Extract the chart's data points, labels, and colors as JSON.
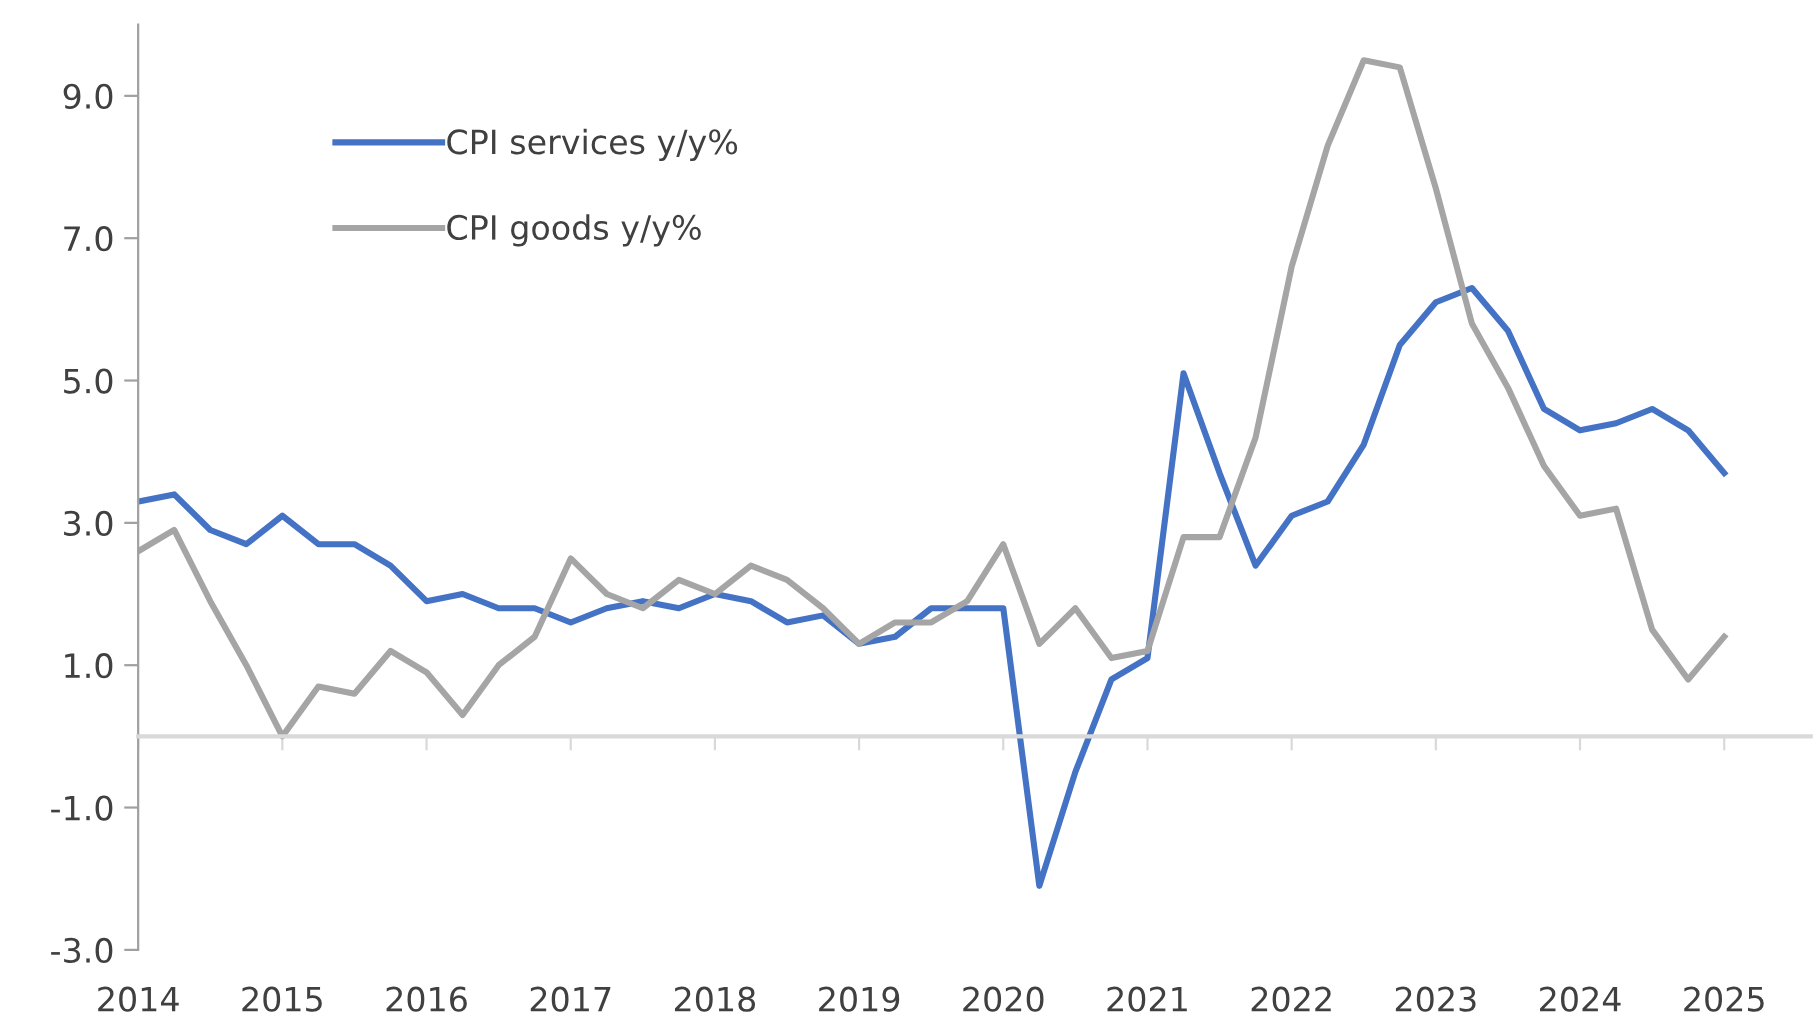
{
  "chart_data": {
    "type": "line",
    "x": [
      2014.0,
      2014.25,
      2014.5,
      2014.75,
      2015.0,
      2015.25,
      2015.5,
      2015.75,
      2016.0,
      2016.25,
      2016.5,
      2016.75,
      2017.0,
      2017.25,
      2017.5,
      2017.75,
      2018.0,
      2018.25,
      2018.5,
      2018.75,
      2019.0,
      2019.25,
      2019.5,
      2019.75,
      2020.0,
      2020.25,
      2020.5,
      2020.75,
      2021.0,
      2021.25,
      2021.5,
      2021.75,
      2022.0,
      2022.25,
      2022.5,
      2022.75,
      2023.0,
      2023.25,
      2023.5,
      2023.75,
      2024.0,
      2024.25,
      2024.5,
      2024.75,
      2025.0
    ],
    "series": [
      {
        "name": "CPI services y/y%",
        "color": "#4472c4",
        "values": [
          3.3,
          3.4,
          2.9,
          2.7,
          3.1,
          2.7,
          2.7,
          2.4,
          1.9,
          2.0,
          1.8,
          1.8,
          1.6,
          1.8,
          1.9,
          1.8,
          2.0,
          1.9,
          1.6,
          1.7,
          1.3,
          1.4,
          1.8,
          1.8,
          1.8,
          -2.1,
          -0.5,
          0.8,
          1.1,
          5.1,
          3.7,
          2.4,
          3.1,
          3.3,
          4.1,
          5.5,
          6.1,
          6.3,
          5.7,
          4.6,
          4.3,
          4.4,
          4.6,
          4.3,
          3.7
        ]
      },
      {
        "name": "CPI goods y/y%",
        "color": "#a5a5a5",
        "values": [
          2.6,
          2.9,
          1.9,
          1.0,
          0.0,
          0.7,
          0.6,
          1.2,
          0.9,
          0.3,
          1.0,
          1.4,
          2.5,
          2.0,
          1.8,
          2.2,
          2.0,
          2.4,
          2.2,
          1.8,
          1.3,
          1.6,
          1.6,
          1.9,
          2.7,
          1.3,
          1.8,
          1.1,
          1.2,
          2.8,
          2.8,
          4.2,
          6.6,
          8.3,
          9.5,
          9.4,
          7.7,
          5.8,
          4.9,
          3.8,
          3.1,
          3.2,
          1.5,
          0.8,
          1.4
        ]
      }
    ],
    "xlim": [
      2014,
      2025.6
    ],
    "xticks": [
      2014,
      2015,
      2016,
      2017,
      2018,
      2019,
      2020,
      2021,
      2022,
      2023,
      2024,
      2025
    ],
    "ylim": [
      -3,
      10
    ],
    "yticks": [
      {
        "value": -3,
        "label": "-3.0"
      },
      {
        "value": -1,
        "label": "-1.0"
      },
      {
        "value": 1,
        "label": "1.0"
      },
      {
        "value": 3,
        "label": "3.0"
      },
      {
        "value": 5,
        "label": "5.0"
      },
      {
        "value": 7,
        "label": "7.0"
      },
      {
        "value": 9,
        "label": "9.0"
      }
    ],
    "grid": false,
    "legend": "top left",
    "line_style": "solid",
    "marker": "none"
  }
}
